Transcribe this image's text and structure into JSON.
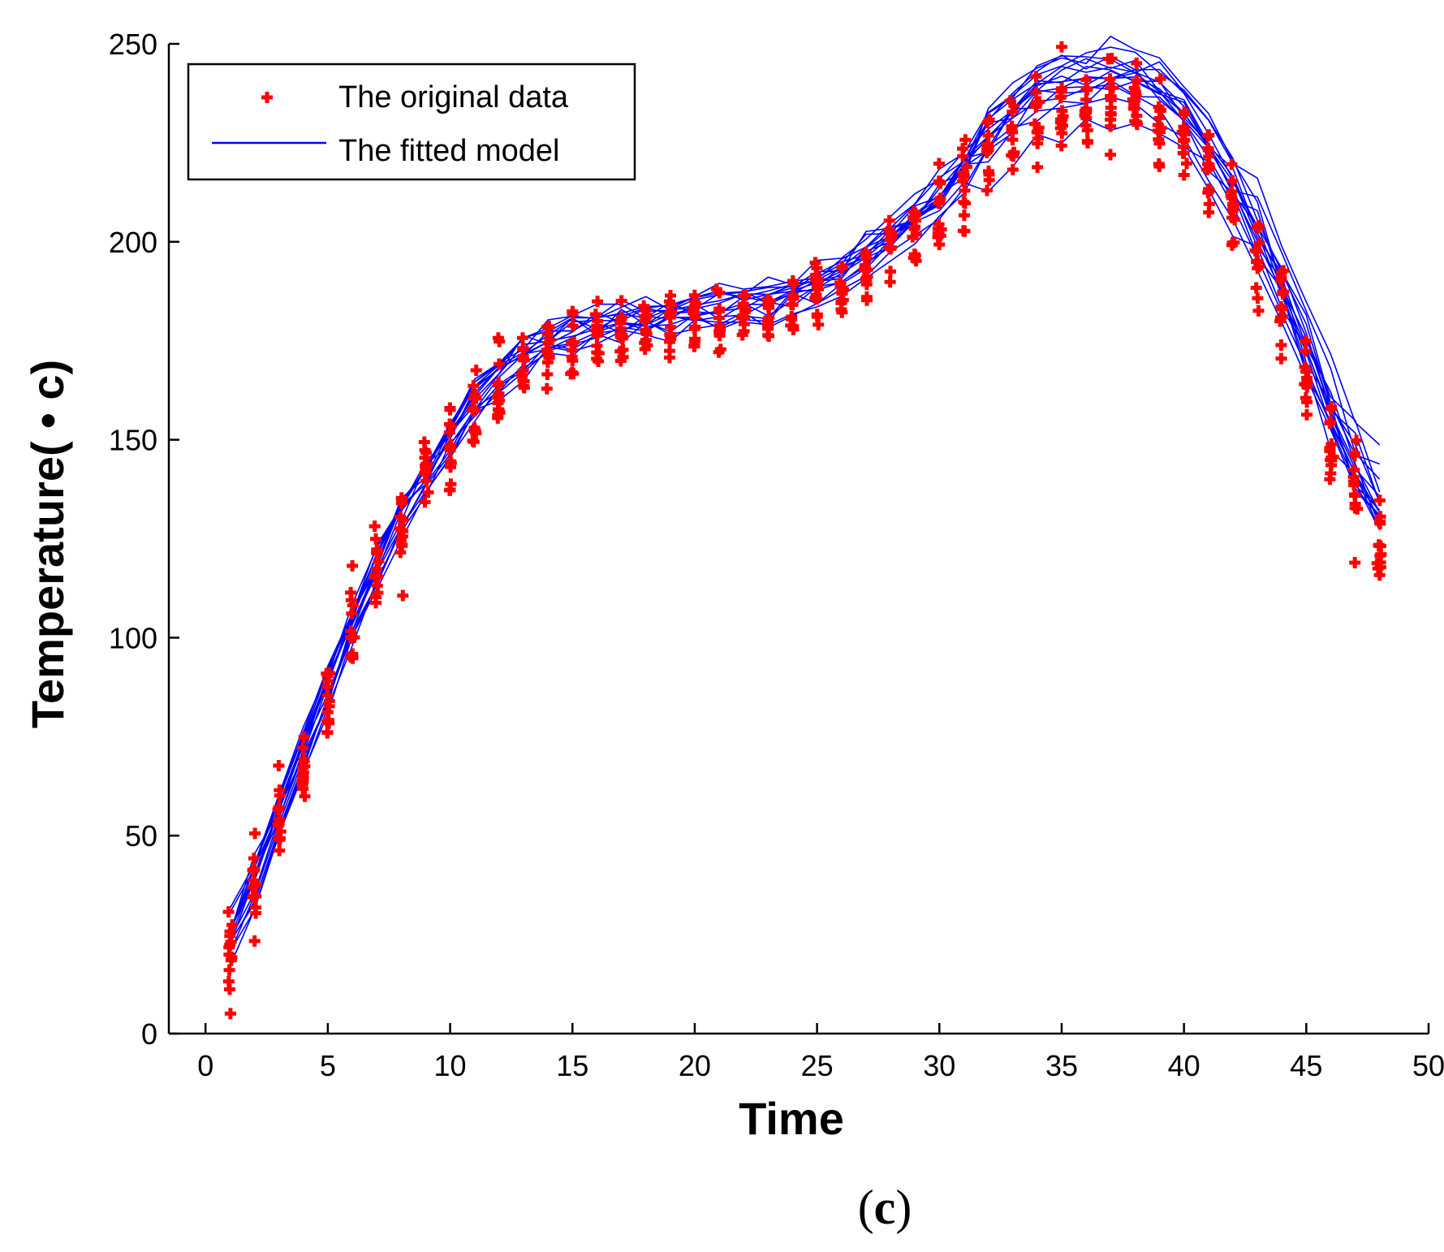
{
  "chart_data": {
    "type": "line",
    "title": "",
    "xlabel": "Time",
    "ylabel": "Temperature( • c)",
    "panel_label": {
      "open": "(",
      "letter": "c",
      "close": ")"
    },
    "xlim": [
      -1.5,
      50
    ],
    "ylim": [
      0,
      250
    ],
    "xticks": [
      0,
      5,
      10,
      15,
      20,
      25,
      30,
      35,
      40,
      45,
      50
    ],
    "yticks": [
      0,
      50,
      100,
      150,
      200,
      250
    ],
    "legend": {
      "position": "top-left",
      "entries": [
        {
          "label": "The original data",
          "marker": "plus",
          "color": "#ff0000"
        },
        {
          "label": "The fitted model",
          "marker": "line",
          "color": "#0000ff"
        }
      ]
    },
    "x": [
      1,
      2,
      3,
      4,
      5,
      6,
      7,
      8,
      9,
      10,
      11,
      12,
      13,
      14,
      15,
      16,
      17,
      18,
      19,
      20,
      21,
      22,
      23,
      24,
      25,
      26,
      27,
      28,
      29,
      30,
      31,
      32,
      33,
      34,
      35,
      36,
      37,
      38,
      39,
      40,
      41,
      42,
      43,
      44,
      45,
      46,
      47,
      48
    ],
    "mean_curve": [
      24,
      38,
      55,
      70,
      87,
      104,
      118,
      130,
      140,
      150,
      159,
      166,
      171,
      174,
      176,
      178,
      179,
      180,
      180,
      181,
      182,
      183,
      184,
      186,
      188,
      191,
      195,
      200,
      205,
      210,
      217,
      223,
      229,
      234,
      236,
      237,
      238,
      237,
      234,
      228,
      220,
      210,
      198,
      184,
      168,
      152,
      139,
      128
    ],
    "series": [
      {
        "name": "The original data",
        "type": "scatter",
        "color": "#ff0000",
        "count": 14
      },
      {
        "name": "The fitted model",
        "type": "line",
        "color": "#0000ff",
        "count": 16
      }
    ],
    "colors": {
      "data": "#ff0000",
      "model": "#0000ff",
      "axis": "#000000"
    }
  }
}
